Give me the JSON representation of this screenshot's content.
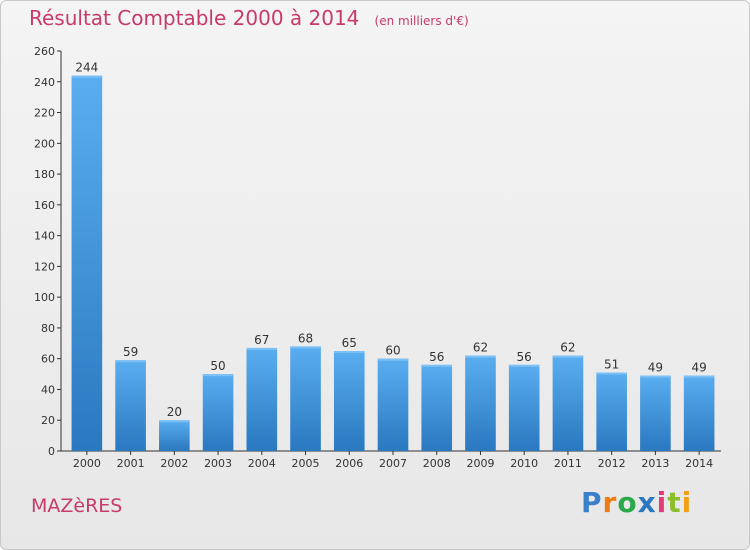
{
  "chart_data": {
    "type": "bar",
    "title": "Résultat Comptable 2000 à 2014",
    "subtitle": "(en milliers d'€)",
    "categories": [
      "2000",
      "2001",
      "2002",
      "2003",
      "2004",
      "2005",
      "2006",
      "2007",
      "2008",
      "2009",
      "2010",
      "2011",
      "2012",
      "2013",
      "2014"
    ],
    "values": [
      244,
      59,
      20,
      50,
      67,
      68,
      65,
      60,
      56,
      62,
      56,
      62,
      51,
      49,
      49
    ],
    "ylim": [
      0,
      260
    ],
    "yticks": [
      0,
      20,
      40,
      60,
      80,
      100,
      120,
      140,
      160,
      180,
      200,
      220,
      240,
      260
    ],
    "xlabel": "",
    "ylabel": "",
    "grid": false,
    "bar_color": "#4a9fe0",
    "bar_color_dark": "#2a78c0"
  },
  "commune": "MAZèRES",
  "logo": {
    "letters": [
      "P",
      "r",
      "o",
      "x",
      "i",
      "t",
      "i"
    ],
    "colors": [
      "#3a7fc9",
      "#f07a12",
      "#2aa84a",
      "#2a78c0",
      "#e23a7a",
      "#8bbf2a",
      "#f0a012"
    ]
  },
  "colors": {
    "accent": "#c83a6b",
    "axis": "#333333"
  }
}
